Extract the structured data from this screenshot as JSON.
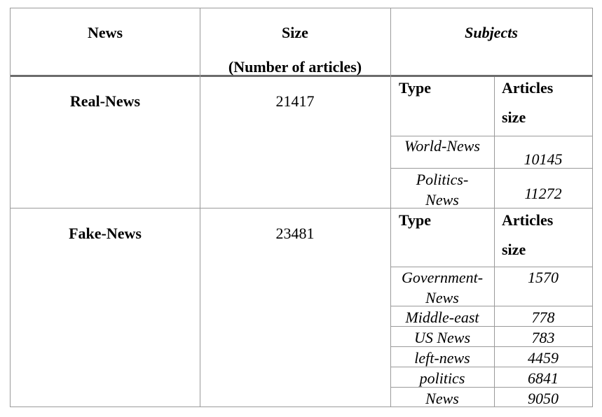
{
  "headers": {
    "news": "News",
    "size_line1": "Size",
    "size_line2": "(Number of articles)",
    "subjects": "Subjects"
  },
  "rows": [
    {
      "label": "Real-News",
      "size": "21417",
      "type_header": "Type",
      "articles_header_line1": "Articles",
      "articles_header_line2": "size",
      "subjects": [
        {
          "type_line1": "World-News",
          "type_line2": "",
          "count": "10145"
        },
        {
          "type_line1": "Politics-",
          "type_line2": "News",
          "count": "11272"
        }
      ]
    },
    {
      "label": "Fake-News",
      "size": "23481",
      "type_header": "Type",
      "articles_header_line1": "Articles",
      "articles_header_line2": "size",
      "subjects": [
        {
          "type_line1": "Government-",
          "type_line2": "News",
          "count": "1570"
        },
        {
          "type_line1": "Middle-east",
          "type_line2": "",
          "count": "778"
        },
        {
          "type_line1": "US News",
          "type_line2": "",
          "count": "783"
        },
        {
          "type_line1": "left-news",
          "type_line2": "",
          "count": "4459"
        },
        {
          "type_line1": "politics",
          "type_line2": "",
          "count": "6841"
        },
        {
          "type_line1": "News",
          "type_line2": "",
          "count": "9050"
        }
      ]
    }
  ]
}
